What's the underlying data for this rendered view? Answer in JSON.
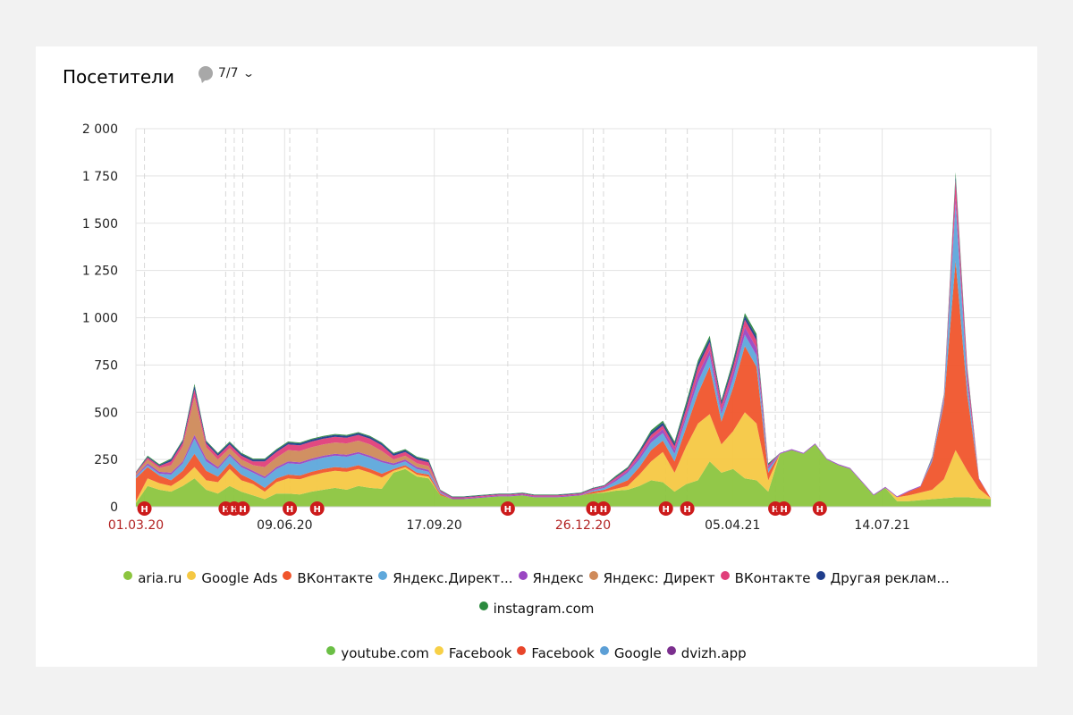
{
  "header": {
    "title": "Посетители",
    "notes_count": "7/7"
  },
  "colors": {
    "annotation": "#cc1b1b",
    "holiday_label": "#b22222"
  },
  "chart_data": {
    "type": "area",
    "stacked": true,
    "title": "Посетители",
    "ylim": [
      0,
      2000
    ],
    "y_ticks": [
      "0",
      "250",
      "500",
      "750",
      "1 000",
      "1 250",
      "1 500",
      "1 750",
      "2 000"
    ],
    "y_tick_values": [
      0,
      250,
      500,
      750,
      1000,
      1250,
      1500,
      1750,
      2000
    ],
    "x_ticks": [
      {
        "label": "01.03.20",
        "pos": 0.0,
        "holiday": true
      },
      {
        "label": "09.06.20",
        "pos": 0.174,
        "holiday": false
      },
      {
        "label": "17.09.20",
        "pos": 0.349,
        "holiday": false
      },
      {
        "label": "26.12.20",
        "pos": 0.523,
        "holiday": true
      },
      {
        "label": "05.04.21",
        "pos": 0.698,
        "holiday": false
      },
      {
        "label": "14.07.21",
        "pos": 0.873,
        "holiday": false
      }
    ],
    "x_range": [
      "01.03.20",
      "10.09.21"
    ],
    "annotation_marker": "Н",
    "annotation_positions": [
      0.01,
      0.105,
      0.115,
      0.125,
      0.18,
      0.212,
      0.435,
      0.535,
      0.547,
      0.62,
      0.645,
      0.748,
      0.758,
      0.8
    ],
    "series": [
      {
        "name": "aria.ru",
        "color": "#8cc53f",
        "values": [
          20,
          110,
          90,
          80,
          110,
          150,
          90,
          70,
          110,
          80,
          60,
          40,
          70,
          70,
          65,
          80,
          90,
          100,
          90,
          110,
          100,
          95,
          180,
          200,
          160,
          150,
          60,
          40,
          40,
          45,
          50,
          55,
          55,
          60,
          50,
          50,
          50,
          55,
          60,
          70,
          75,
          85,
          90,
          110,
          140,
          130,
          80,
          120,
          140,
          240,
          180,
          200,
          150,
          140,
          80,
          280,
          300,
          280,
          330,
          250,
          220,
          200,
          130,
          60,
          100,
          30,
          30,
          35,
          40,
          45,
          50,
          50,
          45,
          40
        ]
      },
      {
        "name": "Google Ads",
        "color": "#f5c843",
        "values": [
          10,
          40,
          35,
          30,
          40,
          60,
          50,
          60,
          90,
          60,
          60,
          40,
          60,
          80,
          80,
          85,
          90,
          90,
          95,
          90,
          80,
          60,
          10,
          10,
          10,
          10,
          0,
          0,
          0,
          0,
          0,
          0,
          0,
          0,
          0,
          0,
          0,
          0,
          0,
          0,
          5,
          10,
          20,
          60,
          100,
          160,
          100,
          200,
          300,
          250,
          150,
          200,
          350,
          300,
          60,
          0,
          0,
          0,
          0,
          0,
          0,
          0,
          0,
          0,
          0,
          20,
          30,
          40,
          50,
          100,
          250,
          140,
          50,
          5
        ]
      },
      {
        "name": "ВКонтакте",
        "color": "#f0552c",
        "values": [
          120,
          60,
          40,
          30,
          40,
          70,
          50,
          30,
          30,
          30,
          20,
          20,
          20,
          20,
          20,
          20,
          20,
          20,
          20,
          20,
          20,
          20,
          10,
          10,
          10,
          10,
          10,
          0,
          0,
          0,
          0,
          0,
          0,
          0,
          0,
          0,
          0,
          0,
          0,
          10,
          10,
          20,
          30,
          40,
          60,
          60,
          60,
          100,
          160,
          250,
          120,
          230,
          350,
          300,
          40,
          0,
          0,
          0,
          0,
          0,
          0,
          0,
          0,
          0,
          0,
          0,
          20,
          30,
          150,
          400,
          1000,
          400,
          50,
          0
        ]
      },
      {
        "name": "Яндекс.Директ...",
        "color": "#5ea8db",
        "values": [
          10,
          10,
          10,
          30,
          40,
          80,
          50,
          40,
          40,
          40,
          40,
          50,
          50,
          60,
          60,
          60,
          60,
          60,
          60,
          60,
          60,
          60,
          20,
          20,
          20,
          15,
          5,
          0,
          0,
          0,
          0,
          0,
          0,
          0,
          0,
          0,
          0,
          0,
          0,
          5,
          10,
          20,
          40,
          40,
          40,
          40,
          40,
          50,
          60,
          60,
          40,
          50,
          60,
          60,
          20,
          0,
          0,
          0,
          0,
          0,
          0,
          0,
          0,
          0,
          0,
          0,
          0,
          0,
          10,
          20,
          300,
          60,
          0,
          0
        ]
      },
      {
        "name": "Яндекс",
        "color": "#9a47c2",
        "values": [
          5,
          10,
          10,
          10,
          10,
          20,
          15,
          10,
          10,
          10,
          10,
          10,
          10,
          10,
          10,
          10,
          10,
          10,
          10,
          10,
          10,
          10,
          10,
          10,
          10,
          10,
          5,
          5,
          5,
          5,
          5,
          5,
          5,
          5,
          5,
          5,
          5,
          5,
          5,
          5,
          5,
          10,
          10,
          15,
          20,
          20,
          20,
          20,
          40,
          30,
          20,
          30,
          40,
          40,
          10,
          5,
          5,
          5,
          5,
          5,
          5,
          5,
          5,
          5,
          5,
          5,
          5,
          5,
          10,
          10,
          30,
          20,
          5,
          0
        ]
      },
      {
        "name": "Яндекс: Директ",
        "color": "#cf8a5a",
        "values": [
          10,
          20,
          20,
          40,
          80,
          200,
          60,
          40,
          30,
          30,
          30,
          50,
          50,
          60,
          60,
          60,
          60,
          60,
          60,
          60,
          60,
          50,
          20,
          20,
          20,
          20,
          0,
          0,
          0,
          0,
          0,
          0,
          0,
          0,
          0,
          0,
          0,
          0,
          0,
          0,
          0,
          0,
          0,
          0,
          0,
          0,
          0,
          0,
          0,
          0,
          0,
          0,
          0,
          0,
          0,
          0,
          0,
          0,
          0,
          0,
          0,
          0,
          0,
          0,
          0,
          0,
          0,
          0,
          0,
          0,
          0,
          0,
          0,
          0
        ]
      },
      {
        "name": "ВКонтакте",
        "color": "#e03f7a",
        "values": [
          5,
          10,
          10,
          20,
          20,
          40,
          20,
          20,
          20,
          20,
          20,
          30,
          30,
          30,
          30,
          30,
          30,
          30,
          30,
          30,
          30,
          30,
          20,
          20,
          20,
          20,
          5,
          5,
          5,
          5,
          5,
          5,
          5,
          5,
          5,
          5,
          5,
          5,
          5,
          5,
          5,
          10,
          10,
          20,
          20,
          20,
          20,
          30,
          40,
          40,
          30,
          30,
          40,
          40,
          10,
          0,
          0,
          0,
          0,
          0,
          0,
          0,
          0,
          0,
          0,
          0,
          0,
          0,
          0,
          10,
          100,
          50,
          0,
          0
        ]
      },
      {
        "name": "Другая реклам...",
        "color": "#1f3d8c",
        "values": [
          3,
          5,
          5,
          10,
          10,
          20,
          10,
          10,
          10,
          10,
          10,
          10,
          10,
          10,
          10,
          10,
          10,
          10,
          10,
          10,
          10,
          10,
          10,
          10,
          10,
          10,
          3,
          3,
          3,
          3,
          3,
          3,
          3,
          3,
          3,
          3,
          3,
          3,
          3,
          3,
          3,
          5,
          5,
          10,
          15,
          15,
          15,
          20,
          20,
          20,
          15,
          20,
          20,
          20,
          5,
          0,
          0,
          0,
          0,
          0,
          0,
          0,
          0,
          0,
          0,
          0,
          0,
          0,
          0,
          5,
          20,
          10,
          0,
          0
        ]
      },
      {
        "name": "instagram.com",
        "color": "#2b8a3e",
        "values": [
          2,
          5,
          5,
          5,
          5,
          10,
          5,
          5,
          5,
          5,
          5,
          5,
          5,
          5,
          5,
          5,
          5,
          5,
          5,
          5,
          5,
          5,
          5,
          5,
          5,
          5,
          2,
          2,
          2,
          2,
          2,
          2,
          2,
          2,
          2,
          2,
          2,
          2,
          2,
          2,
          2,
          5,
          5,
          5,
          10,
          10,
          10,
          15,
          15,
          15,
          10,
          15,
          15,
          15,
          5,
          0,
          0,
          0,
          0,
          0,
          0,
          0,
          0,
          0,
          0,
          0,
          0,
          0,
          5,
          5,
          20,
          10,
          0,
          0
        ]
      },
      {
        "name": "youtube.com",
        "color": "#6bbf45",
        "values": [
          0,
          0,
          0,
          0,
          0,
          0,
          0,
          0,
          0,
          0,
          0,
          0,
          0,
          0,
          0,
          0,
          0,
          0,
          0,
          0,
          0,
          0,
          0,
          0,
          0,
          0,
          0,
          0,
          0,
          0,
          0,
          0,
          0,
          0,
          0,
          0,
          0,
          0,
          0,
          0,
          0,
          0,
          0,
          0,
          0,
          0,
          0,
          0,
          0,
          0,
          0,
          0,
          0,
          0,
          0,
          0,
          0,
          0,
          0,
          0,
          0,
          0,
          0,
          0,
          0,
          0,
          0,
          0,
          0,
          0,
          0,
          0,
          0,
          0
        ]
      },
      {
        "name": "Facebook",
        "color": "#f7d047",
        "values": [
          0,
          0,
          0,
          0,
          0,
          0,
          0,
          0,
          0,
          0,
          0,
          0,
          0,
          0,
          0,
          0,
          0,
          0,
          0,
          0,
          0,
          0,
          0,
          0,
          0,
          0,
          0,
          0,
          0,
          0,
          0,
          0,
          0,
          0,
          0,
          0,
          0,
          0,
          0,
          0,
          0,
          0,
          0,
          0,
          0,
          0,
          0,
          0,
          0,
          0,
          0,
          0,
          0,
          0,
          0,
          0,
          0,
          0,
          0,
          0,
          0,
          0,
          0,
          0,
          0,
          0,
          0,
          0,
          0,
          0,
          0,
          0,
          0,
          0
        ]
      },
      {
        "name": "Facebook",
        "color": "#e8452a",
        "values": [
          0,
          0,
          0,
          0,
          0,
          0,
          0,
          0,
          0,
          0,
          0,
          0,
          0,
          0,
          0,
          0,
          0,
          0,
          0,
          0,
          0,
          0,
          0,
          0,
          0,
          0,
          0,
          0,
          0,
          0,
          0,
          0,
          0,
          0,
          0,
          0,
          0,
          0,
          0,
          0,
          0,
          0,
          0,
          0,
          0,
          0,
          0,
          0,
          0,
          0,
          0,
          0,
          0,
          0,
          0,
          0,
          0,
          0,
          0,
          0,
          0,
          0,
          0,
          0,
          0,
          0,
          0,
          0,
          0,
          0,
          0,
          0,
          0,
          0
        ]
      },
      {
        "name": "Google",
        "color": "#5c9fd6",
        "values": [
          0,
          0,
          0,
          0,
          0,
          0,
          0,
          0,
          0,
          0,
          0,
          0,
          0,
          0,
          0,
          0,
          0,
          0,
          0,
          0,
          0,
          0,
          0,
          0,
          0,
          0,
          0,
          0,
          0,
          0,
          0,
          0,
          0,
          0,
          0,
          0,
          0,
          0,
          0,
          0,
          0,
          0,
          0,
          0,
          0,
          0,
          0,
          0,
          0,
          0,
          0,
          0,
          0,
          0,
          0,
          0,
          0,
          0,
          0,
          0,
          0,
          0,
          0,
          0,
          0,
          0,
          0,
          0,
          0,
          0,
          0,
          0,
          0,
          0
        ]
      },
      {
        "name": "dvizh.app",
        "color": "#7b2f8e",
        "values": [
          0,
          0,
          0,
          0,
          0,
          0,
          0,
          0,
          0,
          0,
          0,
          0,
          0,
          0,
          0,
          0,
          0,
          0,
          0,
          0,
          0,
          0,
          0,
          0,
          0,
          0,
          0,
          0,
          0,
          0,
          0,
          0,
          0,
          0,
          0,
          0,
          0,
          0,
          0,
          0,
          0,
          0,
          0,
          0,
          0,
          0,
          0,
          0,
          0,
          0,
          0,
          0,
          0,
          0,
          0,
          0,
          0,
          0,
          0,
          0,
          0,
          0,
          0,
          0,
          0,
          0,
          0,
          0,
          0,
          0,
          0,
          0,
          0,
          0
        ]
      }
    ]
  }
}
